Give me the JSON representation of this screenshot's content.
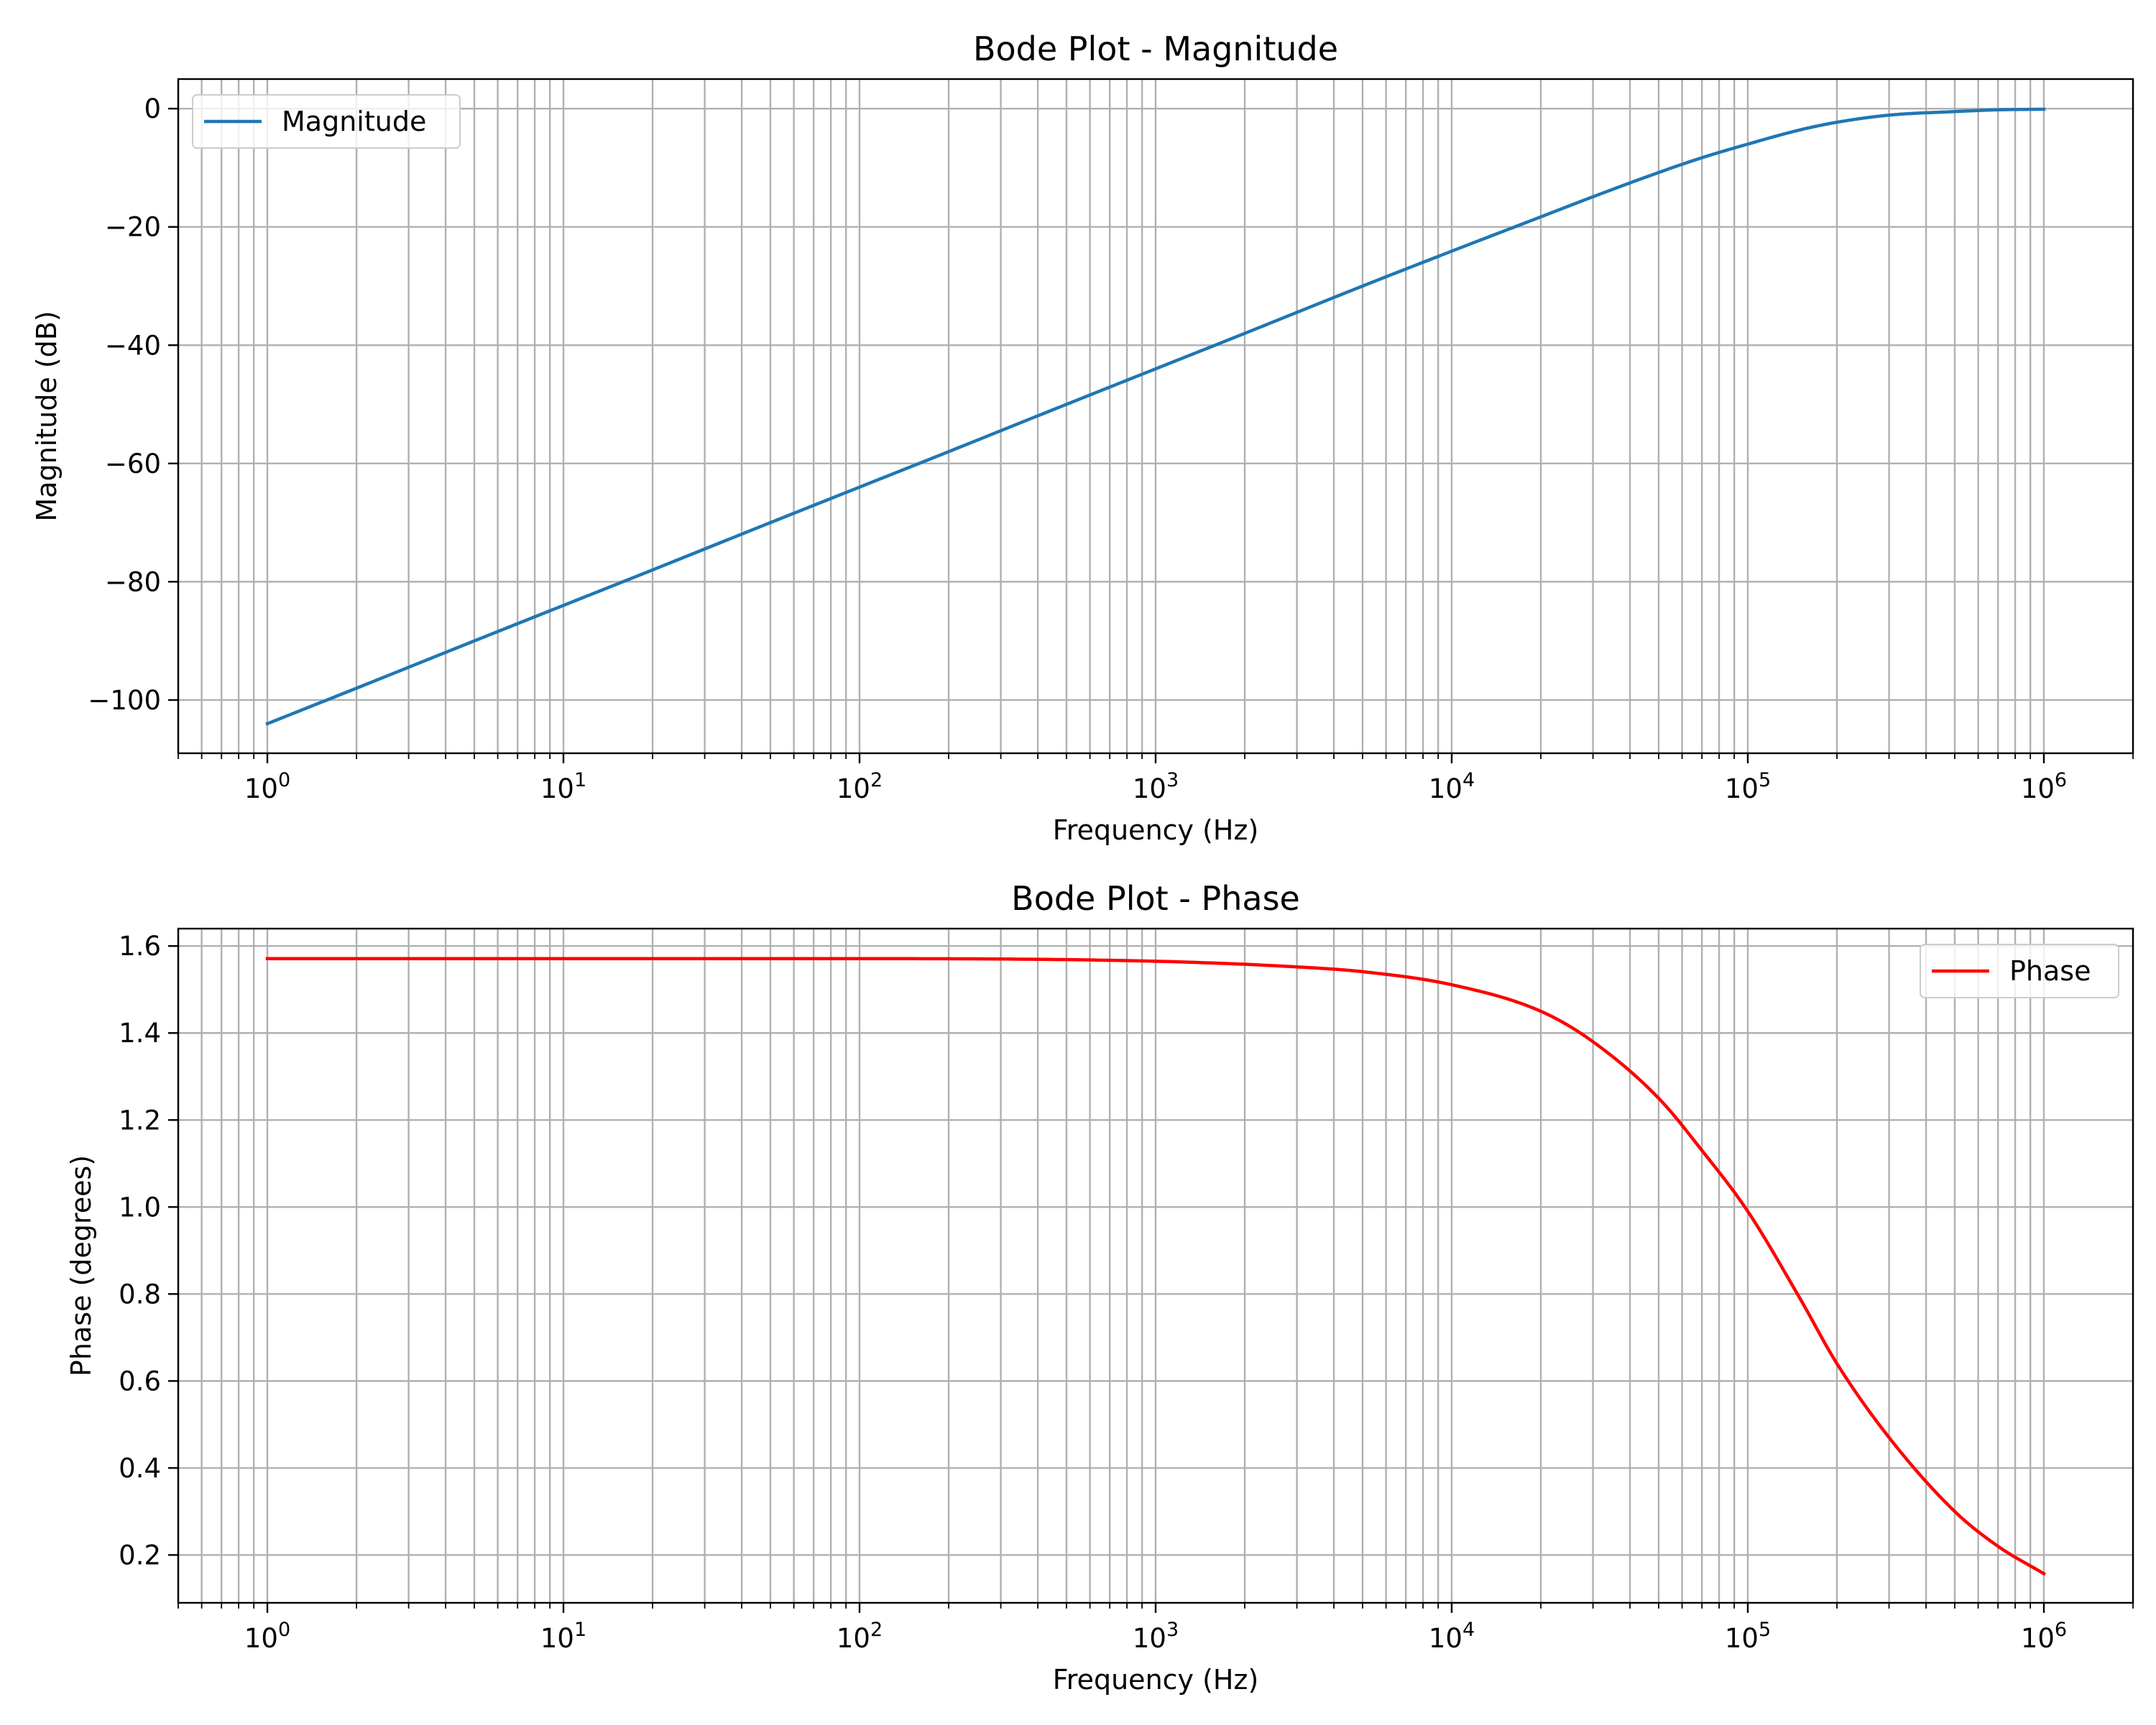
{
  "chart_data": [
    {
      "type": "line",
      "title": "Bode Plot - Magnitude",
      "xlabel": "Frequency (Hz)",
      "ylabel": "Magnitude (dB)",
      "xscale": "log",
      "xlim": [
        0.5,
        2000000
      ],
      "ylim": [
        -109,
        5
      ],
      "xticks": [
        1,
        10,
        100,
        1000,
        10000,
        100000,
        1000000
      ],
      "xtick_labels": [
        {
          "base": "10",
          "exp": "0"
        },
        {
          "base": "10",
          "exp": "1"
        },
        {
          "base": "10",
          "exp": "2"
        },
        {
          "base": "10",
          "exp": "3"
        },
        {
          "base": "10",
          "exp": "4"
        },
        {
          "base": "10",
          "exp": "5"
        },
        {
          "base": "10",
          "exp": "6"
        }
      ],
      "yticks": [
        0,
        -20,
        -40,
        -60,
        -80,
        -100
      ],
      "ytick_labels": [
        "0",
        "−20",
        "−40",
        "−60",
        "−80",
        "−100"
      ],
      "grid": "both",
      "legend_position": "upper left",
      "series": [
        {
          "name": "Magnitude",
          "color": "#1f77b4",
          "x": [
            1,
            2,
            5,
            10,
            20,
            50,
            100,
            200,
            500,
            1000,
            2000,
            5000,
            10000,
            20000,
            30000,
            50000,
            70000,
            100000,
            150000,
            200000,
            300000,
            500000,
            700000,
            1000000
          ],
          "y": [
            -104,
            -98,
            -90,
            -84,
            -78,
            -70,
            -64,
            -58,
            -50,
            -44,
            -38,
            -30,
            -24.1,
            -18.3,
            -14.9,
            -10.8,
            -8.3,
            -6.0,
            -3.6,
            -2.3,
            -1.1,
            -0.5,
            -0.2,
            -0.1
          ]
        }
      ]
    },
    {
      "type": "line",
      "title": "Bode Plot - Phase",
      "xlabel": "Frequency (Hz)",
      "ylabel": "Phase (degrees)",
      "xscale": "log",
      "xlim": [
        0.5,
        2000000
      ],
      "ylim": [
        0.09,
        1.64
      ],
      "xticks": [
        1,
        10,
        100,
        1000,
        10000,
        100000,
        1000000
      ],
      "xtick_labels": [
        {
          "base": "10",
          "exp": "0"
        },
        {
          "base": "10",
          "exp": "1"
        },
        {
          "base": "10",
          "exp": "2"
        },
        {
          "base": "10",
          "exp": "3"
        },
        {
          "base": "10",
          "exp": "4"
        },
        {
          "base": "10",
          "exp": "5"
        },
        {
          "base": "10",
          "exp": "6"
        }
      ],
      "yticks": [
        1.6,
        1.4,
        1.2,
        1.0,
        0.8,
        0.6,
        0.4,
        0.2
      ],
      "ytick_labels": [
        "1.6",
        "1.4",
        "1.2",
        "1.0",
        "0.8",
        "0.6",
        "0.4",
        "0.2"
      ],
      "grid": "both",
      "legend_position": "upper right",
      "series": [
        {
          "name": "Phase",
          "color": "#ff0000",
          "x": [
            1,
            10,
            100,
            1000,
            3000,
            5000,
            10000,
            20000,
            30000,
            50000,
            70000,
            100000,
            150000,
            200000,
            300000,
            500000,
            700000,
            1000000
          ],
          "y": [
            1.571,
            1.571,
            1.571,
            1.565,
            1.552,
            1.541,
            1.511,
            1.45,
            1.38,
            1.25,
            1.13,
            0.99,
            0.79,
            0.64,
            0.47,
            0.3,
            0.22,
            0.157
          ]
        }
      ]
    }
  ]
}
